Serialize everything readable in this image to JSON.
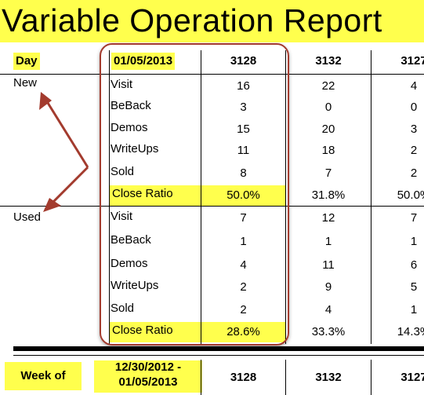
{
  "title": "Variable Operation Report",
  "header": {
    "day_label": "Day",
    "date": "01/05/2013",
    "columns": [
      "3128",
      "3132",
      "3127"
    ]
  },
  "groups": [
    {
      "label": "New",
      "rows": [
        {
          "metric": "Visit",
          "values": [
            "16",
            "22",
            "4"
          ]
        },
        {
          "metric": "BeBack",
          "values": [
            "3",
            "0",
            "0"
          ]
        },
        {
          "metric": "Demos",
          "values": [
            "15",
            "20",
            "3"
          ]
        },
        {
          "metric": "WriteUps",
          "values": [
            "11",
            "18",
            "2"
          ]
        },
        {
          "metric": "Sold",
          "values": [
            "8",
            "7",
            "2"
          ]
        },
        {
          "metric": "Close Ratio",
          "values": [
            "50.0%",
            "31.8%",
            "50.0%"
          ]
        }
      ]
    },
    {
      "label": "Used",
      "rows": [
        {
          "metric": "Visit",
          "values": [
            "7",
            "12",
            "7"
          ]
        },
        {
          "metric": "BeBack",
          "values": [
            "1",
            "1",
            "1"
          ]
        },
        {
          "metric": "Demos",
          "values": [
            "4",
            "11",
            "6"
          ]
        },
        {
          "metric": "WriteUps",
          "values": [
            "2",
            "9",
            "5"
          ]
        },
        {
          "metric": "Sold",
          "values": [
            "2",
            "4",
            "1"
          ]
        },
        {
          "metric": "Close Ratio",
          "values": [
            "28.6%",
            "33.3%",
            "14.3%"
          ]
        }
      ]
    }
  ],
  "footer": {
    "week_label": "Week of",
    "week_line1": "12/30/2012 -",
    "week_line2": "01/05/2013",
    "columns": [
      "3128",
      "3132",
      "3127"
    ]
  },
  "colors": {
    "highlight": "#ffff4d",
    "annotation": "#a33b2e"
  }
}
